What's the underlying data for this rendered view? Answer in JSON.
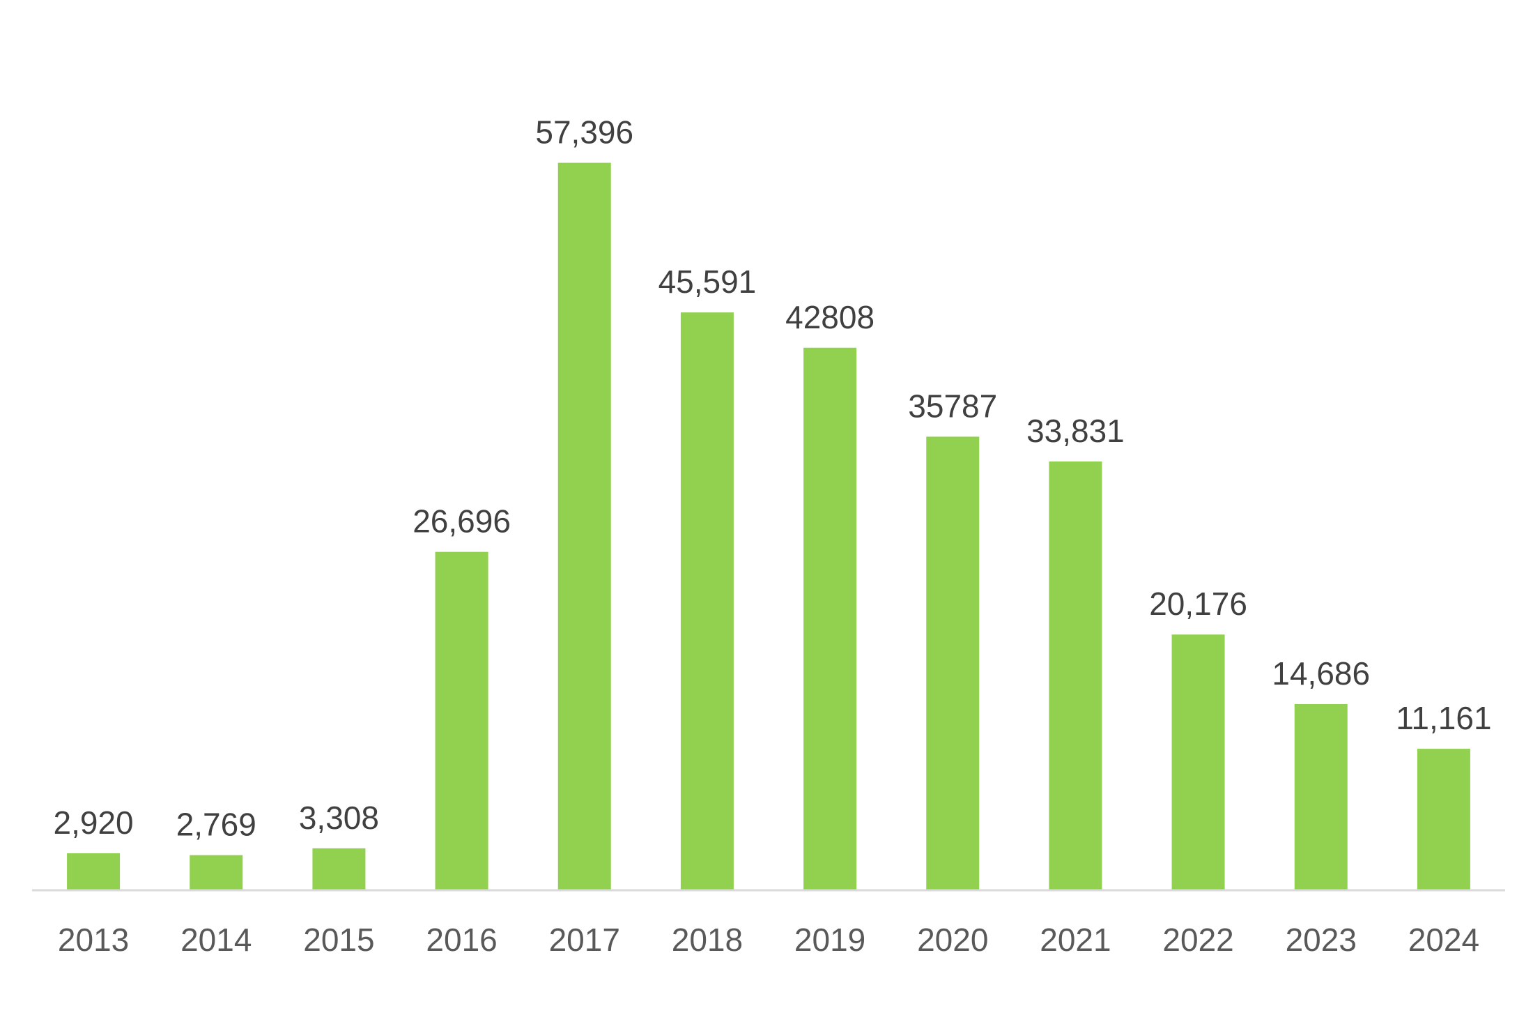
{
  "chart_data": {
    "type": "bar",
    "title": "",
    "xlabel": "",
    "ylabel": "",
    "categories": [
      "2013",
      "2014",
      "2015",
      "2016",
      "2017",
      "2018",
      "2019",
      "2020",
      "2021",
      "2022",
      "2023",
      "2024"
    ],
    "values": [
      2920,
      2769,
      3308,
      26696,
      57396,
      45591,
      42808,
      35787,
      33831,
      20176,
      14686,
      11161
    ],
    "data_labels": [
      "2,920",
      "2,769",
      "3,308",
      "26,696",
      "57,396",
      "45,591",
      "42808",
      "35787",
      "33,831",
      "20,176",
      "14,686",
      "11,161"
    ],
    "ylim": [
      0,
      65000
    ],
    "grid": false,
    "legend": "none",
    "colors": {
      "bar": "#92d050",
      "axis_line": "#d9d9d9",
      "data_label": "#404040",
      "tick_label": "#595959"
    }
  }
}
